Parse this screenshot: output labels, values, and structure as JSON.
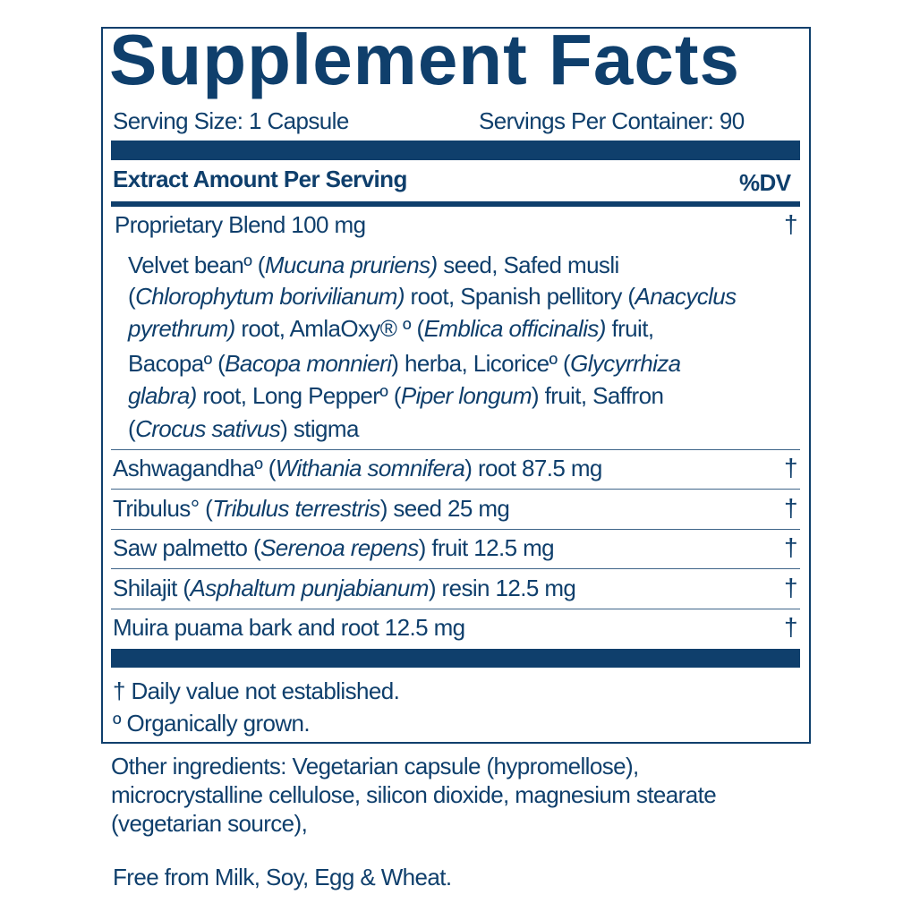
{
  "title": "Supplement Facts",
  "serving_size": "Serving Size: 1 Capsule",
  "servings_per_container": "Servings Per Container: 90",
  "header": {
    "amount": "Extract Amount Per Serving",
    "dv": "%DV"
  },
  "blend": {
    "name": "Proprietary Blend 100 mg",
    "dv": "†",
    "lines": [
      [
        {
          "t": "Velvet beanº ("
        },
        {
          "t": "Mucuna pruriens)",
          "i": true
        },
        {
          "t": " seed, Safed musli"
        }
      ],
      [
        {
          "t": "("
        },
        {
          "t": "Chlorophytum borivilianum)",
          "i": true
        },
        {
          "t": " root, Spanish pellitory ("
        },
        {
          "t": "Anacyclus",
          "i": true
        }
      ],
      [
        {
          "t": "pyrethrum)",
          "i": true
        },
        {
          "t": " root, AmlaOxy® º ("
        },
        {
          "t": "Emblica officinalis)",
          "i": true
        },
        {
          "t": " fruit,"
        }
      ],
      [
        {
          "t": "Bacopaº ("
        },
        {
          "t": "Bacopa monnieri",
          "i": true
        },
        {
          "t": ") herba, Licoriceº ("
        },
        {
          "t": "Glycyrrhiza",
          "i": true
        }
      ],
      [
        {
          "t": "glabra)",
          "i": true
        },
        {
          "t": " root, Long Pepperº ("
        },
        {
          "t": "Piper longum",
          "i": true
        },
        {
          "t": ") fruit, Saffron"
        }
      ],
      [
        {
          "t": "("
        },
        {
          "t": "Crocus sativus",
          "i": true
        },
        {
          "t": ") stigma"
        }
      ]
    ]
  },
  "ingredients": [
    {
      "segments": [
        {
          "t": "Ashwagandhaº ("
        },
        {
          "t": "Withania somnifera",
          "i": true
        },
        {
          "t": ") root 87.5 mg"
        }
      ],
      "dv": "†"
    },
    {
      "segments": [
        {
          "t": "Tribulus° ("
        },
        {
          "t": "Tribulus terrestris",
          "i": true
        },
        {
          "t": ") seed 25 mg"
        }
      ],
      "dv": "†"
    },
    {
      "segments": [
        {
          "t": "Saw palmetto ("
        },
        {
          "t": "Serenoa repens",
          "i": true
        },
        {
          "t": ") fruit 12.5 mg"
        }
      ],
      "dv": "†"
    },
    {
      "segments": [
        {
          "t": "Shilajit ("
        },
        {
          "t": "Asphaltum punjabianum",
          "i": true
        },
        {
          "t": ") resin 12.5 mg"
        }
      ],
      "dv": "†"
    },
    {
      "segments": [
        {
          "t": "Muira puama bark and root 12.5 mg"
        }
      ],
      "dv": "†"
    }
  ],
  "footnotes": [
    "† Daily value not established.",
    "º Organically grown."
  ],
  "other_ingredients": [
    "Other ingredients: Vegetarian capsule (hypromellose),",
    "microcrystalline cellulose, silicon dioxide, magnesium stearate",
    "(vegetarian source),"
  ],
  "allergen_statement": "Free from Milk, Soy, Egg & Wheat.",
  "colors": {
    "brand": "#0f3f6c"
  }
}
